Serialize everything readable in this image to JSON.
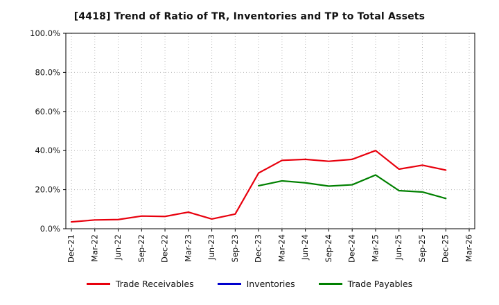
{
  "title": "[4418]  Trend of Ratio of TR, Inventories and TP to Total Assets",
  "chart_data": {
    "type": "line",
    "categories": [
      "Dec-21",
      "Mar-22",
      "Jun-22",
      "Sep-22",
      "Dec-22",
      "Mar-23",
      "Jun-23",
      "Sep-23",
      "Dec-23",
      "Mar-24",
      "Jun-24",
      "Sep-24",
      "Dec-24",
      "Mar-25",
      "Jun-25",
      "Sep-25",
      "Dec-25",
      "Mar-26"
    ],
    "series": [
      {
        "name": "Trade Receivables",
        "color": "#e8000d",
        "values": [
          3.5,
          4.5,
          4.7,
          6.5,
          6.3,
          8.5,
          5.0,
          7.5,
          28.5,
          35.0,
          35.5,
          34.5,
          35.5,
          40.0,
          30.5,
          32.5,
          30.0,
          null
        ]
      },
      {
        "name": "Inventories",
        "color": "#0000cd",
        "values": [
          null,
          null,
          null,
          null,
          null,
          null,
          null,
          null,
          null,
          null,
          null,
          null,
          null,
          null,
          null,
          null,
          null,
          null
        ]
      },
      {
        "name": "Trade Payables",
        "color": "#008000",
        "values": [
          null,
          null,
          null,
          null,
          null,
          null,
          null,
          null,
          22.0,
          24.5,
          23.5,
          21.8,
          22.5,
          27.5,
          19.5,
          18.8,
          15.5,
          null
        ]
      }
    ],
    "ylim": [
      0,
      100
    ],
    "yticks": [
      0,
      20,
      40,
      60,
      80,
      100
    ],
    "ytick_labels": [
      "0.0%",
      "20.0%",
      "40.0%",
      "60.0%",
      "80.0%",
      "100.0%"
    ],
    "grid": true,
    "legend_position": "bottom"
  }
}
